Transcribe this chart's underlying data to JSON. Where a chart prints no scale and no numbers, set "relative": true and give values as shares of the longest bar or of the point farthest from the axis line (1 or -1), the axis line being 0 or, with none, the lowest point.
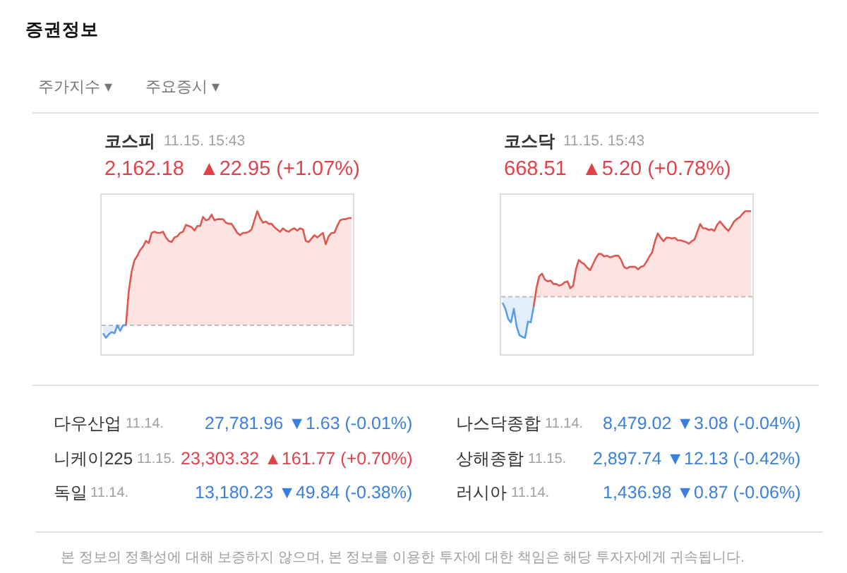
{
  "chart_data": [
    {
      "type": "other",
      "title": "증권정보",
      "annotations": [
        "주가지수 ▾",
        "주요증시 ▾"
      ]
    },
    {
      "type": "area",
      "title": "코스피",
      "subtitle": "11.15. 15:43",
      "annotations": [
        "2,162.18",
        "▲22.95 (+1.07%)"
      ],
      "relative": true,
      "categories": [
        null,
        null,
        null,
        null,
        null,
        null,
        null,
        null,
        null,
        null,
        null,
        null,
        null,
        null,
        null,
        null,
        null,
        null,
        null,
        null,
        null,
        null,
        null,
        null,
        null,
        null,
        null,
        null,
        null,
        null,
        null,
        null,
        null,
        null,
        null,
        null,
        null,
        null,
        null,
        null,
        null,
        null,
        null,
        null,
        null,
        null,
        null,
        null,
        null,
        null,
        null,
        null,
        null,
        null,
        null,
        null,
        null,
        null,
        null,
        null,
        null,
        null,
        null,
        null,
        null,
        null,
        null,
        null,
        null,
        null,
        null,
        null,
        null,
        null,
        null,
        null,
        null,
        null,
        null,
        null,
        null,
        null,
        null,
        null,
        null,
        null,
        null,
        null
      ],
      "series": [
        {
          "color": "#5a9de6",
          "values": [
            -0.07,
            -0.11,
            -0.08,
            -0.06,
            -0.07,
            0.0,
            -0.05,
            0.0,
            0.0,
            null,
            null,
            null,
            null,
            null,
            null,
            null,
            null,
            null,
            null,
            null,
            null,
            null,
            null,
            null,
            null,
            null,
            null,
            null,
            null,
            null,
            null,
            null,
            null,
            null,
            null,
            null,
            null,
            null,
            null,
            null,
            null,
            null,
            null,
            null,
            null,
            null,
            null,
            null,
            null,
            null,
            null,
            null,
            null,
            null,
            null,
            null,
            null,
            null,
            null,
            null,
            null,
            null,
            null,
            null,
            null,
            null,
            null,
            null,
            null,
            null,
            null,
            null,
            null,
            null,
            null,
            null,
            null,
            null,
            null,
            null,
            null,
            null,
            null,
            null,
            null,
            null,
            null,
            null
          ]
        },
        {
          "color": "#e0574f",
          "values": [
            null,
            null,
            null,
            null,
            null,
            null,
            null,
            null,
            0.0,
            0.3,
            0.47,
            0.57,
            0.61,
            0.66,
            0.69,
            0.74,
            0.72,
            0.81,
            0.82,
            0.81,
            0.81,
            0.82,
            0.77,
            0.74,
            0.73,
            0.77,
            0.78,
            0.81,
            0.82,
            0.88,
            0.87,
            0.86,
            0.83,
            0.87,
            0.87,
            0.95,
            0.92,
            0.93,
            0.97,
            0.92,
            0.93,
            0.93,
            0.93,
            0.9,
            0.89,
            0.89,
            0.85,
            0.81,
            0.79,
            0.81,
            0.81,
            0.82,
            0.84,
            0.92,
            1,
            0.94,
            0.9,
            0.91,
            0.89,
            0.89,
            0.86,
            0.84,
            0.82,
            0.85,
            0.83,
            0.82,
            0.84,
            0.85,
            0.83,
            0.85,
            0.84,
            0.74,
            0.73,
            0.76,
            0.79,
            0.77,
            0.79,
            0.81,
            0.71,
            0.78,
            0.81,
            0.81,
            0.87,
            0.92,
            0.93,
            0.93,
            0.94,
            0.94
          ]
        }
      ],
      "ref_lines": [
        {
          "axis": "y",
          "value": 0,
          "color": "#c4c4c4",
          "line_style": "dashed"
        }
      ]
    },
    {
      "type": "area",
      "title": "코스닥",
      "subtitle": "11.15. 15:43",
      "annotations": [
        "668.51",
        "▲5.20 (+0.78%)"
      ],
      "relative": true,
      "categories": [
        null,
        null,
        null,
        null,
        null,
        null,
        null,
        null,
        null,
        null,
        null,
        null,
        null,
        null,
        null,
        null,
        null,
        null,
        null,
        null,
        null,
        null,
        null,
        null,
        null,
        null,
        null,
        null,
        null,
        null,
        null,
        null,
        null,
        null,
        null,
        null,
        null,
        null,
        null,
        null,
        null,
        null,
        null,
        null,
        null,
        null,
        null,
        null,
        null,
        null,
        null,
        null,
        null,
        null,
        null,
        null,
        null,
        null,
        null,
        null,
        null,
        null,
        null,
        null,
        null,
        null,
        null,
        null,
        null,
        null,
        null,
        null,
        null,
        null,
        null,
        null,
        null,
        null,
        null,
        null,
        null,
        null,
        null,
        null,
        null,
        null,
        null,
        null,
        null
      ],
      "series": [
        {
          "color": "#5a9de6",
          "values": [
            -0.07,
            -0.14,
            -0.26,
            -0.3,
            -0.14,
            -0.35,
            -0.45,
            -0.47,
            -0.48,
            -0.29,
            -0.3,
            -0.12,
            null,
            null,
            null,
            null,
            null,
            null,
            null,
            null,
            null,
            null,
            null,
            null,
            null,
            null,
            null,
            null,
            null,
            null,
            null,
            null,
            null,
            null,
            null,
            null,
            null,
            null,
            null,
            null,
            null,
            null,
            null,
            null,
            null,
            null,
            null,
            null,
            null,
            null,
            null,
            null,
            null,
            null,
            null,
            null,
            null,
            null,
            null,
            null,
            null,
            null,
            null,
            null,
            null,
            null,
            null,
            null,
            null,
            null,
            null,
            null,
            null,
            null,
            null,
            null,
            null,
            null,
            null,
            null,
            null,
            null,
            null,
            null,
            null,
            null,
            null,
            null,
            null
          ]
        },
        {
          "color": "#e0574f",
          "values": [
            null,
            null,
            null,
            null,
            null,
            null,
            null,
            null,
            null,
            null,
            null,
            -0.12,
            0.1,
            0.24,
            0.27,
            0.2,
            0.18,
            0.19,
            0.15,
            0.15,
            0.13,
            0.14,
            0.17,
            0.18,
            0.1,
            0.13,
            0.32,
            0.43,
            0.4,
            0.38,
            0.34,
            0.31,
            0.38,
            0.45,
            0.5,
            0.5,
            0.47,
            0.48,
            0.46,
            0.47,
            0.48,
            0.48,
            0.43,
            0.35,
            0.33,
            0.35,
            0.35,
            0.35,
            0.32,
            0.35,
            0.36,
            0.41,
            0.47,
            0.52,
            0.65,
            0.74,
            0.69,
            0.65,
            0.69,
            0.69,
            0.68,
            0.69,
            0.66,
            0.66,
            0.65,
            0.64,
            0.62,
            0.65,
            0.67,
            0.76,
            0.85,
            0.8,
            0.8,
            0.78,
            0.79,
            0.77,
            0.84,
            0.88,
            0.84,
            0.8,
            0.77,
            0.82,
            0.88,
            0.91,
            0.93,
            0.97,
            1,
            1,
            1
          ]
        }
      ],
      "ref_lines": [
        {
          "axis": "y",
          "value": 0,
          "color": "#c4c4c4",
          "line_style": "dashed"
        }
      ]
    },
    {
      "type": "other",
      "annotations": [
        "다우산업",
        "11.14.",
        "27,781.96 ▼1.63 (-0.01%)",
        "나스닥종합",
        "11.14.",
        "8,479.02 ▼3.08 (-0.04%)",
        "니케이225",
        "11.15.",
        "23,303.32 ▲161.77 (+0.70%)",
        "상해종합",
        "11.15.",
        "2,897.74 ▼12.13 (-0.42%)",
        "독일",
        "11.14.",
        "13,180.23 ▼49.84 (-0.38%)",
        "러시아",
        "11.14.",
        "1,436.98 ▼0.87 (-0.06%)",
        "본 정보의 정확성에 대해 보증하지 않으며, 본 정보를 이용한 투자에 대한 책임은 해당 투자자에게 귀속됩니다."
      ]
    }
  ]
}
